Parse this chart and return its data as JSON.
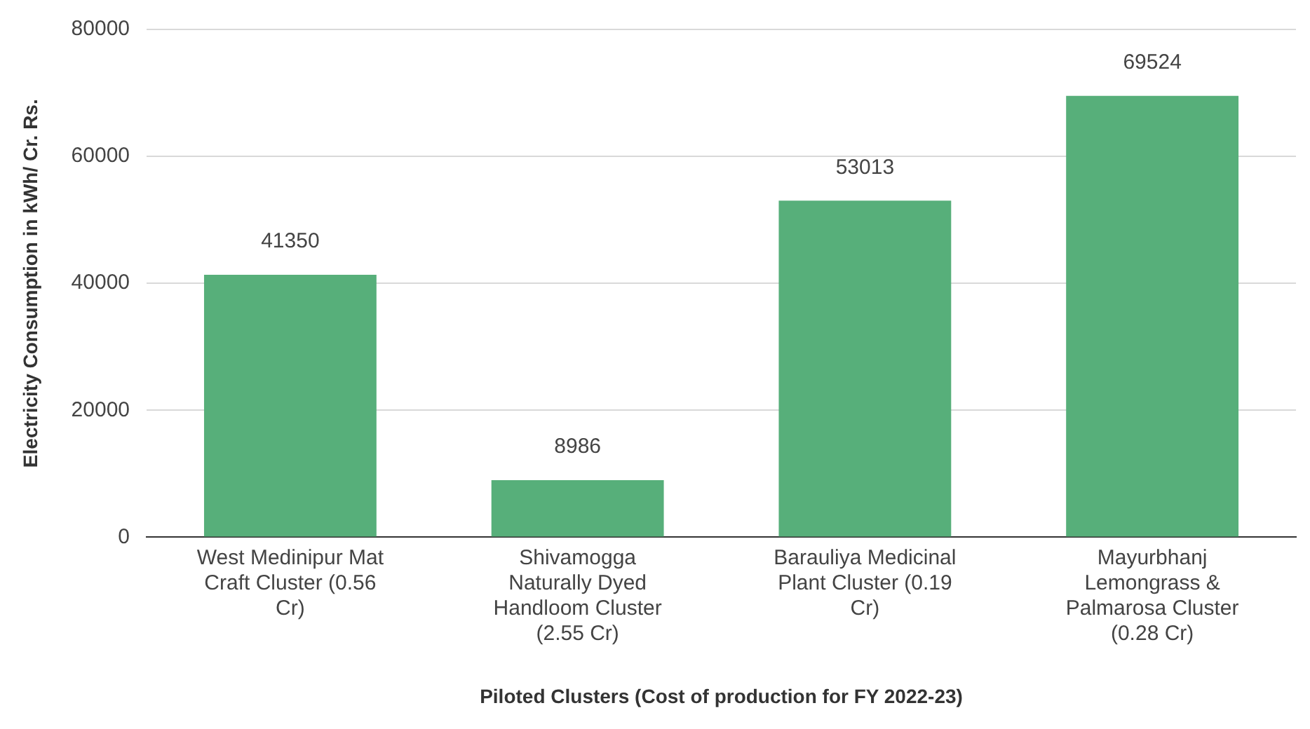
{
  "chart_data": {
    "type": "bar",
    "categories": [
      "West Medinipur Mat Craft Cluster (0.56 Cr)",
      "Shivamogga Naturally Dyed Handloom Cluster (2.55 Cr)",
      "Barauliya Medicinal Plant Cluster (0.19 Cr)",
      "Mayurbhanj Lemongrass & Palmarosa Cluster (0.28 Cr)"
    ],
    "values": [
      41350,
      8986,
      53013,
      69524
    ],
    "color": "#57af7a",
    "xlabel": "Piloted Clusters (Cost of production for FY 2022-23)",
    "ylabel": "Electricity Consumption in kWh/ Cr. Rs.",
    "ylim": [
      0,
      80000
    ],
    "yticks": [
      0,
      20000,
      40000,
      60000,
      80000
    ],
    "grid": "y",
    "legend": false,
    "data_labels": true
  }
}
